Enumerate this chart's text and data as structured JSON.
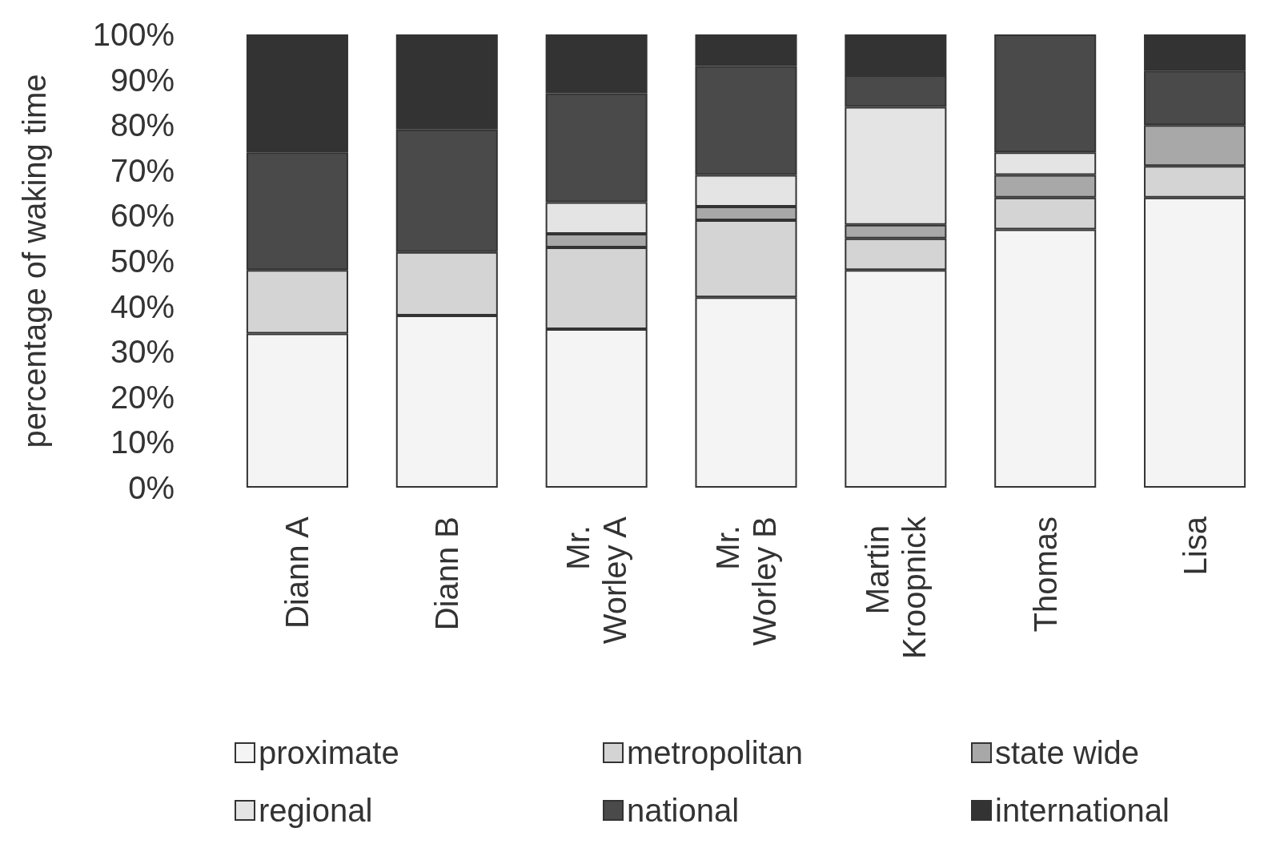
{
  "chart_data": {
    "type": "bar",
    "stacked": true,
    "ylabel": "percentage of waking time",
    "categories": [
      "Diann A",
      "Diann B",
      "Mr. Worley A",
      "Mr. Worley B",
      "Martin Kroopnick",
      "Thomas",
      "Lisa"
    ],
    "series": [
      {
        "name": "proximate",
        "color": "#f4f4f4",
        "values": [
          34,
          38,
          35,
          42,
          48,
          57,
          64
        ]
      },
      {
        "name": "metropolitan",
        "color": "#d4d4d4",
        "values": [
          14,
          14,
          18,
          17,
          7,
          7,
          7
        ]
      },
      {
        "name": "state wide",
        "color": "#a8a8a8",
        "values": [
          null,
          null,
          3,
          3,
          3,
          5,
          9
        ]
      },
      {
        "name": "regional",
        "color": "#e4e4e4",
        "values": [
          null,
          null,
          7,
          7,
          26,
          5,
          null
        ]
      },
      {
        "name": "national",
        "color": "#4a4a4a",
        "values": [
          26,
          27,
          24,
          24,
          7,
          26,
          12
        ]
      },
      {
        "name": "international",
        "color": "#333333",
        "values": [
          26,
          21,
          13,
          7,
          9,
          null,
          8
        ]
      }
    ],
    "ylim": [
      0,
      100
    ],
    "yticks": [
      {
        "value": 0,
        "label": "0%"
      },
      {
        "value": 10,
        "label": "10%"
      },
      {
        "value": 20,
        "label": "20%"
      },
      {
        "value": 30,
        "label": "30%"
      },
      {
        "value": 40,
        "label": "40%"
      },
      {
        "value": 50,
        "label": "50%"
      },
      {
        "value": 60,
        "label": "60%"
      },
      {
        "value": 70,
        "label": "70%"
      },
      {
        "value": 80,
        "label": "80%"
      },
      {
        "value": 90,
        "label": "90%"
      },
      {
        "value": 100,
        "label": "100%"
      }
    ],
    "grid": false,
    "legend": "bottom"
  }
}
